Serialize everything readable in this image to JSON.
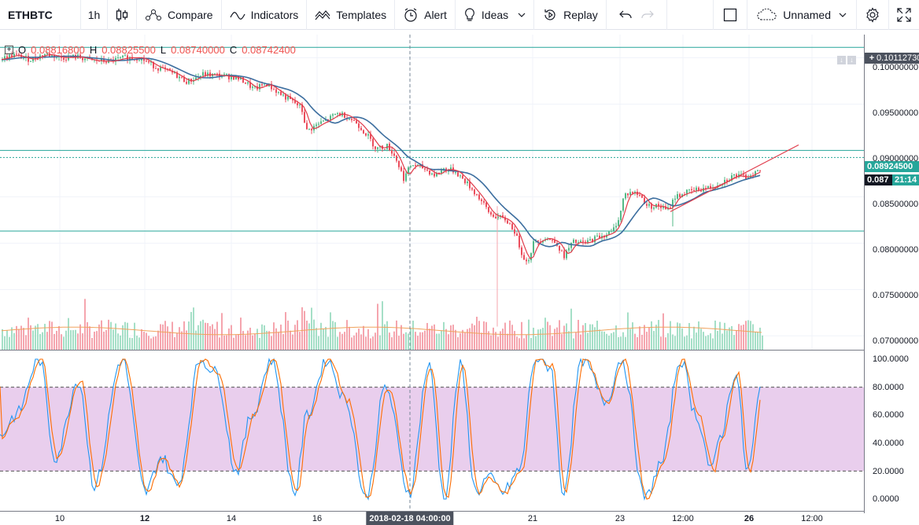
{
  "toolbar": {
    "symbol": "ETHBTC",
    "interval": "1h",
    "compare": "Compare",
    "indicators": "Indicators",
    "templates": "Templates",
    "alert": "Alert",
    "ideas": "Ideas",
    "replay": "Replay",
    "layout_name": "Unnamed"
  },
  "legend": {
    "open_label": "O",
    "open": "0.08816800",
    "high_label": "H",
    "high": "0.08825500",
    "low_label": "L",
    "low": "0.08740000",
    "close_label": "C",
    "close": "0.08742400"
  },
  "price_axis": {
    "ticks": [
      "0.10000000",
      "0.09500000",
      "0.09000000",
      "0.08500000",
      "0.08000000",
      "0.07500000",
      "0.07000000"
    ],
    "top_line_label": "0.10112730",
    "level_label": "0.08924500",
    "last_price_label": "0.087",
    "countdown": "21:14"
  },
  "stoch_axis": {
    "ticks": [
      "100.0000",
      "80.0000",
      "60.0000",
      "40.0000",
      "20.0000",
      "0.0000"
    ]
  },
  "time_axis": {
    "ticks": [
      "10",
      "12",
      "14",
      "16",
      "21",
      "23",
      "12:00",
      "26",
      "12:00"
    ],
    "crosshair_date": "2018-02-18 04:00:00"
  },
  "colors": {
    "up": "#26a69a",
    "down": "#ef5350",
    "candle_up": "#53b987",
    "candle_down": "#eb4d5c",
    "ma_fast": "#e03b4a",
    "ma_slow": "#3c6e9f",
    "level_line": "#26a69a",
    "stoch_k": "#2196f3",
    "stoch_d": "#ff6d00",
    "stoch_band": "#e1bee7"
  },
  "chart_data": {
    "type": "candlestick",
    "symbol": "ETHBTC",
    "interval": "1h",
    "ylim": [
      0.0685,
      0.1025
    ],
    "levels": [
      0.1011273,
      0.09,
      0.089245,
      0.0813
    ],
    "close_path": [
      [
        0,
        0.0998
      ],
      [
        20,
        0.1003
      ],
      [
        40,
        0.0998
      ],
      [
        60,
        0.1004
      ],
      [
        80,
        0.1
      ],
      [
        100,
        0.1001
      ],
      [
        120,
        0.0997
      ],
      [
        140,
        0.0996
      ],
      [
        160,
        0.1
      ],
      [
        180,
        0.1
      ],
      [
        200,
        0.099
      ],
      [
        220,
        0.0984
      ],
      [
        240,
        0.0974
      ],
      [
        260,
        0.0982
      ],
      [
        280,
        0.0981
      ],
      [
        300,
        0.0979
      ],
      [
        310,
        0.0976
      ],
      [
        325,
        0.0966
      ],
      [
        340,
        0.0972
      ],
      [
        360,
        0.096
      ],
      [
        375,
        0.0952
      ],
      [
        385,
        0.0946
      ],
      [
        392,
        0.0921
      ],
      [
        400,
        0.0925
      ],
      [
        410,
        0.093
      ],
      [
        420,
        0.0934
      ],
      [
        430,
        0.094
      ],
      [
        440,
        0.0938
      ],
      [
        455,
        0.093
      ],
      [
        470,
        0.0915
      ],
      [
        480,
        0.0902
      ],
      [
        495,
        0.0905
      ],
      [
        505,
        0.0892
      ],
      [
        515,
        0.087
      ],
      [
        525,
        0.0885
      ],
      [
        540,
        0.0881
      ],
      [
        555,
        0.0873
      ],
      [
        565,
        0.088
      ],
      [
        580,
        0.0878
      ],
      [
        595,
        0.0865
      ],
      [
        610,
        0.085
      ],
      [
        625,
        0.0831
      ],
      [
        645,
        0.0825
      ],
      [
        655,
        0.0815
      ],
      [
        665,
        0.079
      ],
      [
        672,
        0.0778
      ],
      [
        680,
        0.08
      ],
      [
        695,
        0.0806
      ],
      [
        710,
        0.08
      ],
      [
        718,
        0.0785
      ],
      [
        730,
        0.0801
      ],
      [
        745,
        0.08
      ],
      [
        760,
        0.0806
      ],
      [
        780,
        0.0812
      ],
      [
        790,
        0.083
      ],
      [
        795,
        0.0852
      ],
      [
        805,
        0.0855
      ],
      [
        815,
        0.0852
      ],
      [
        825,
        0.084
      ],
      [
        840,
        0.084
      ],
      [
        850,
        0.0835
      ],
      [
        860,
        0.085
      ],
      [
        875,
        0.0855
      ],
      [
        890,
        0.0858
      ],
      [
        905,
        0.086
      ],
      [
        920,
        0.0866
      ],
      [
        935,
        0.0873
      ],
      [
        950,
        0.0871
      ],
      [
        960,
        0.0876
      ],
      [
        968,
        0.0878
      ]
    ],
    "volume_ylim": [
      0,
      100
    ],
    "stochastic": {
      "upper_band": 80,
      "lower_band": 20,
      "ylim": [
        0,
        100
      ]
    }
  }
}
